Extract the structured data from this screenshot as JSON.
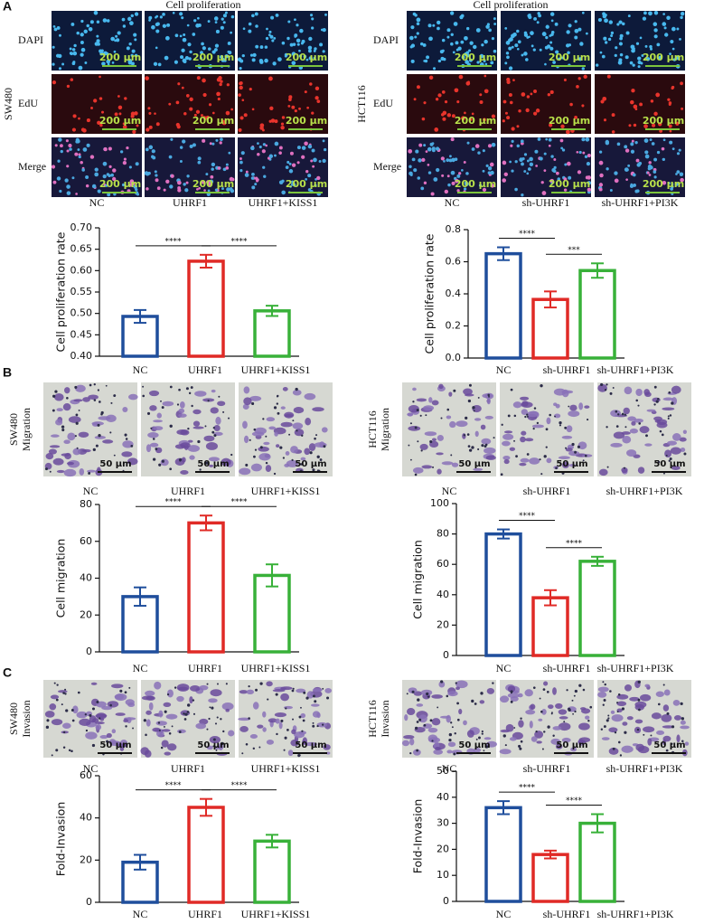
{
  "figure": {
    "panel_letters": [
      "A",
      "B",
      "C"
    ],
    "image_blocks": [
      {
        "title": "Cell proliferation",
        "cell_line": "SW480",
        "rows": [
          "DAPI",
          "EdU",
          "Merge"
        ],
        "columns": [
          "NC",
          "UHRF1",
          "UHRF1+KISS1"
        ],
        "scale_bar": "200 μm"
      },
      {
        "title": "Cell proliferation",
        "cell_line": "HCT116",
        "rows": [
          "DAPI",
          "EdU",
          "Merge"
        ],
        "columns": [
          "NC",
          "sh-UHRF1",
          "sh-UHRF1+PI3K"
        ],
        "scale_bar": "200 μm"
      },
      {
        "cell_line": "SW480",
        "assay": "Migration",
        "columns": [
          "NC",
          "UHRF1",
          "UHRF1+KISS1"
        ],
        "scale_bar": "50 μm"
      },
      {
        "cell_line": "HCT116",
        "assay": "Migration",
        "columns": [
          "NC",
          "sh-UHRF1",
          "sh-UHRF1+PI3K"
        ],
        "scale_bar": "50 μm"
      },
      {
        "cell_line": "SW480",
        "assay": "Invasion",
        "columns": [
          "NC",
          "UHRF1",
          "UHRF1+KISS1"
        ],
        "scale_bar": "50 μm"
      },
      {
        "cell_line": "HCT116",
        "assay": "Invasion",
        "columns": [
          "NC",
          "sh-UHRF1",
          "sh-UHRF1+PI3K"
        ],
        "scale_bar": "50 μm"
      }
    ]
  },
  "chart_data": [
    {
      "type": "bar",
      "ylabel": "Cell proliferation rate",
      "categories": [
        "NC",
        "UHRF1",
        "UHRF1+KISS1"
      ],
      "values": [
        0.493,
        0.622,
        0.506
      ],
      "errors": [
        0.015,
        0.015,
        0.012
      ],
      "colors": [
        "#1f4e9c",
        "#e02a26",
        "#38b139"
      ],
      "ylim": [
        0.4,
        0.7
      ],
      "yticks": [
        {
          "value": 0.4,
          "label": "0.40"
        },
        0.45,
        {
          "value": 0.5,
          "label": "0.50"
        },
        0.55,
        {
          "value": 0.6,
          "label": "0.60"
        },
        0.65,
        {
          "value": 0.7,
          "label": "0.70"
        }
      ],
      "annotations": [
        "****",
        "****"
      ]
    },
    {
      "type": "bar",
      "ylabel": "Cell proliferation rate",
      "categories": [
        "NC",
        "sh-UHRF1",
        "sh-UHRF1+PI3K"
      ],
      "values": [
        0.65,
        0.365,
        0.545
      ],
      "errors": [
        0.04,
        0.05,
        0.045
      ],
      "colors": [
        "#1f4e9c",
        "#e02a26",
        "#38b139"
      ],
      "ylim": [
        0,
        0.8
      ],
      "yticks": [
        {
          "value": 0,
          "label": "0.0"
        },
        0.2,
        0.4,
        0.6,
        0.8
      ],
      "annotations": [
        "****",
        "***"
      ]
    },
    {
      "type": "bar",
      "ylabel": "Cell migration",
      "categories": [
        "NC",
        "UHRF1",
        "UHRF1+KISS1"
      ],
      "values": [
        30,
        70,
        41.5
      ],
      "errors": [
        5,
        4,
        6
      ],
      "colors": [
        "#1f4e9c",
        "#e02a26",
        "#38b139"
      ],
      "ylim": [
        0,
        80
      ],
      "yticks": [
        0,
        20,
        40,
        60,
        80
      ],
      "annotations": [
        "****",
        "****"
      ]
    },
    {
      "type": "bar",
      "ylabel": "Cell migration",
      "categories": [
        "NC",
        "sh-UHRF1",
        "sh-UHRF1+PI3K"
      ],
      "values": [
        80,
        38,
        62
      ],
      "errors": [
        3,
        5,
        3
      ],
      "colors": [
        "#1f4e9c",
        "#e02a26",
        "#38b139"
      ],
      "ylim": [
        0,
        100
      ],
      "yticks": [
        0,
        20,
        40,
        60,
        80,
        100
      ],
      "annotations": [
        "****",
        "****"
      ]
    },
    {
      "type": "bar",
      "ylabel": "Fold-Invasion",
      "categories": [
        "NC",
        "UHRF1",
        "UHRF1+KISS1"
      ],
      "values": [
        19,
        45,
        29
      ],
      "errors": [
        3.5,
        4,
        3
      ],
      "colors": [
        "#1f4e9c",
        "#e02a26",
        "#38b139"
      ],
      "ylim": [
        0,
        60
      ],
      "yticks": [
        0,
        20,
        40,
        60
      ],
      "annotations": [
        "****",
        "****"
      ]
    },
    {
      "type": "bar",
      "ylabel": "Fold-Invasion",
      "categories": [
        "NC",
        "sh-UHRF1",
        "sh-UHRF1+PI3K"
      ],
      "values": [
        36,
        18,
        30
      ],
      "errors": [
        2.5,
        1.5,
        3.5
      ],
      "colors": [
        "#1f4e9c",
        "#e02a26",
        "#38b139"
      ],
      "ylim": [
        0,
        50
      ],
      "yticks": [
        0,
        10,
        20,
        30,
        40,
        50
      ],
      "annotations": [
        "****",
        "****"
      ]
    }
  ]
}
